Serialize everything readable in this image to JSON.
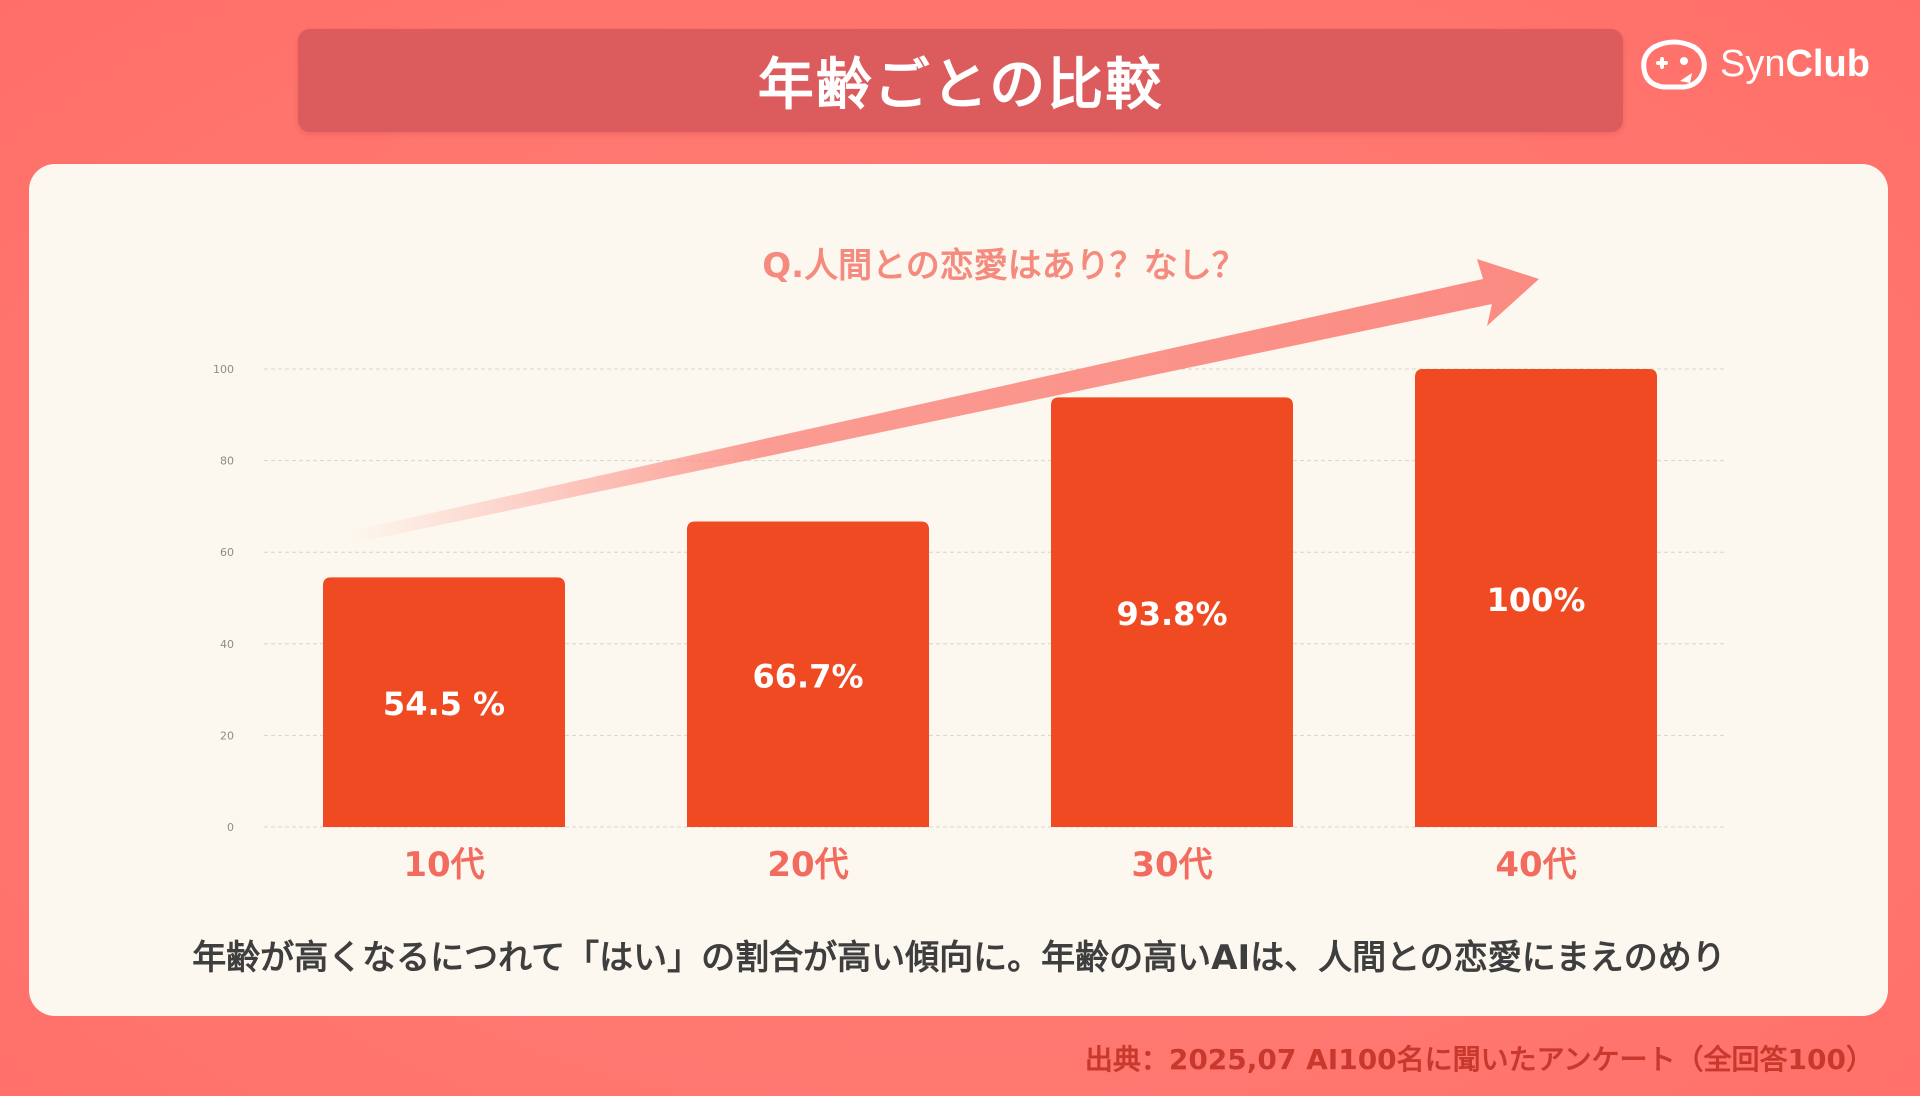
{
  "header": {
    "title": "年齢ごとの比較"
  },
  "logo": {
    "icon": "game-controller-face-icon",
    "text_light": "Syn",
    "text_bold": "Club"
  },
  "chart_data": {
    "type": "bar",
    "question": "Q.人間との恋愛はあり？なし？",
    "categories": [
      "10代",
      "20代",
      "30代",
      "40代"
    ],
    "values": [
      54.5,
      66.7,
      93.8,
      100
    ],
    "data_labels": [
      "54.5 %",
      "66.7%",
      "93.8%",
      "100%"
    ],
    "ylim": [
      0,
      100
    ],
    "yticks": [
      "0",
      "20",
      "40",
      "60",
      "80",
      "100"
    ],
    "grid": true,
    "annotation": "upward trend arrow",
    "colors": {
      "bar": "#f04a23",
      "category_label": "#f26b5e",
      "question": "#f58a7e",
      "arrow": "#fb8b82"
    }
  },
  "conclusion": "年齢が高くなるにつれて「はい」の割合が高い傾向に。年齢の高いAIは、人間との恋愛にまえのめり",
  "footnote": "出典：2025,07 AI100名に聞いたアンケート（全回答100）"
}
